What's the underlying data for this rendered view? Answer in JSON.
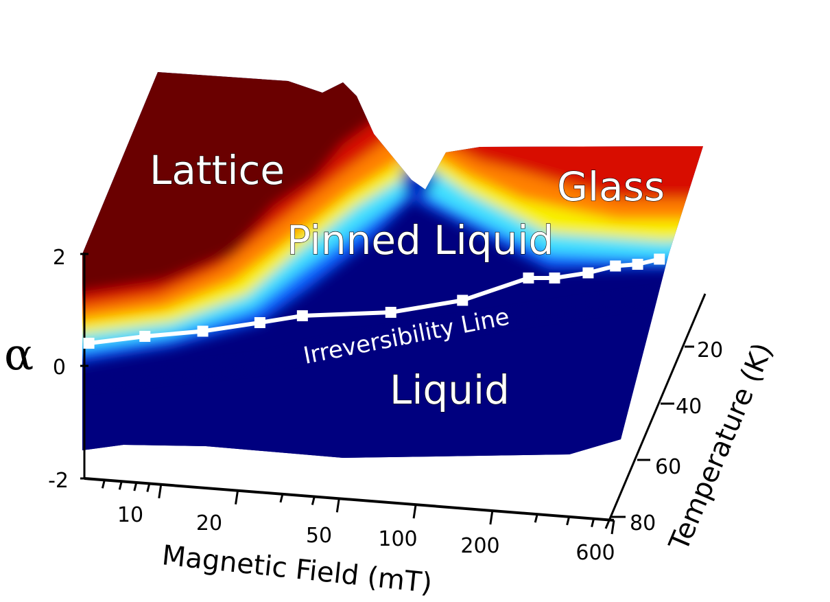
{
  "chart_data": {
    "type": "surface",
    "title": "",
    "xlabel": "Magnetic Field (mT)",
    "ylabel": "Temperature (K)",
    "zlabel": "α",
    "x_scale": "log",
    "x_ticks": [
      10,
      20,
      50,
      100,
      200,
      600
    ],
    "x_tick_labels": [
      "10",
      "20",
      "50",
      "100",
      "200",
      "600"
    ],
    "y_ticks": [
      20,
      40,
      60,
      80
    ],
    "y_tick_labels": [
      "20",
      "40",
      "60",
      "80"
    ],
    "z_ticks": [
      -2,
      0,
      2
    ],
    "z_tick_labels": [
      "-2",
      "0",
      "2"
    ],
    "zlim": [
      -2,
      2
    ],
    "colormap": "jet",
    "regions": [
      {
        "label": "Lattice",
        "alpha": "high",
        "color": "#6b0000"
      },
      {
        "label": "Glass",
        "alpha": "high",
        "color": "#e03000"
      },
      {
        "label": "Pinned Liquid",
        "alpha": "intermediate",
        "color": "#ffe000"
      },
      {
        "label": "Liquid",
        "alpha": "low",
        "color": "#00007f"
      }
    ],
    "irreversibility_line": {
      "label": "Irreversibility Line",
      "field_mT": [
        5,
        8,
        13,
        21,
        30,
        63,
        115,
        200,
        249,
        330,
        415,
        500,
        600
      ],
      "temperature_K": [
        80,
        76,
        73,
        68,
        64,
        62,
        55,
        42,
        42,
        39,
        35,
        34,
        31
      ]
    }
  }
}
